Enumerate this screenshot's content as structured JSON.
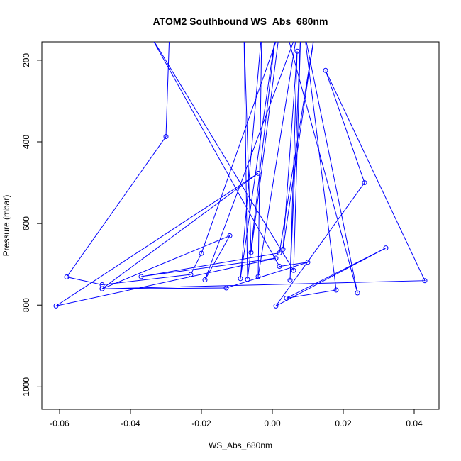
{
  "chart_data": {
    "type": "scatter",
    "title": "ATOM2 Southbound WS_Abs_680nm",
    "xlabel": "WS_Abs_680nm",
    "ylabel": "Pressure (mbar)",
    "xlim": [
      -0.065,
      0.047
    ],
    "ylim": [
      1055,
      155
    ],
    "y_reversed": true,
    "x_ticks": [
      -0.06,
      -0.04,
      -0.02,
      0.0,
      0.02,
      0.04
    ],
    "x_tick_labels": [
      "-0.06",
      "-0.04",
      "-0.02",
      "0.00",
      "0.02",
      "0.04"
    ],
    "y_ticks": [
      200,
      400,
      600,
      800,
      1000
    ],
    "y_tick_labels": [
      "200",
      "400",
      "600",
      "800",
      "1000"
    ],
    "grid": false,
    "color": "#0000ff",
    "series": [
      {
        "marker": "open-circle",
        "line": true,
        "points": [
          {
            "x": -0.029,
            "y": 130
          },
          {
            "x": -0.03,
            "y": 387
          },
          {
            "x": -0.058,
            "y": 731
          },
          {
            "x": -0.048,
            "y": 750
          },
          {
            "x": -0.023,
            "y": 725
          },
          {
            "x": -0.02,
            "y": 673
          },
          {
            "x": 0.002,
            "y": 130
          },
          {
            "x": -0.006,
            "y": 671
          },
          {
            "x": -0.008,
            "y": 130
          },
          {
            "x": -0.007,
            "y": 737
          },
          {
            "x": 0.001,
            "y": 130
          },
          {
            "x": -0.009,
            "y": 735
          },
          {
            "x": -0.003,
            "y": 130
          },
          {
            "x": -0.004,
            "y": 730
          },
          {
            "x": 0.007,
            "y": 130
          },
          {
            "x": -0.019,
            "y": 738
          },
          {
            "x": -0.012,
            "y": 630
          },
          {
            "x": -0.048,
            "y": 760
          },
          {
            "x": -0.004,
            "y": 477
          },
          {
            "x": -0.061,
            "y": 802
          },
          {
            "x": 0.001,
            "y": 685
          },
          {
            "x": -0.037,
            "y": 730
          },
          {
            "x": 0.002,
            "y": 672
          },
          {
            "x": 0.012,
            "y": 130
          },
          {
            "x": 0.003,
            "y": 663
          },
          {
            "x": 0.007,
            "y": 178
          },
          {
            "x": 0.005,
            "y": 739
          },
          {
            "x": 0.008,
            "y": 130
          },
          {
            "x": 0.006,
            "y": 715
          },
          {
            "x": -0.035,
            "y": 130
          },
          {
            "x": 0.002,
            "y": 705
          },
          {
            "x": 0.01,
            "y": 695
          },
          {
            "x": -0.013,
            "y": 758
          },
          {
            "x": -0.048,
            "y": 760
          },
          {
            "x": 0.043,
            "y": 740
          },
          {
            "x": 0.015,
            "y": 225
          },
          {
            "x": 0.026,
            "y": 500
          },
          {
            "x": 0.001,
            "y": 802
          },
          {
            "x": 0.032,
            "y": 660
          },
          {
            "x": 0.004,
            "y": 783
          },
          {
            "x": 0.018,
            "y": 763
          },
          {
            "x": 0.009,
            "y": 130
          },
          {
            "x": 0.024,
            "y": 770
          },
          {
            "x": 0.004,
            "y": 130
          }
        ]
      }
    ]
  }
}
